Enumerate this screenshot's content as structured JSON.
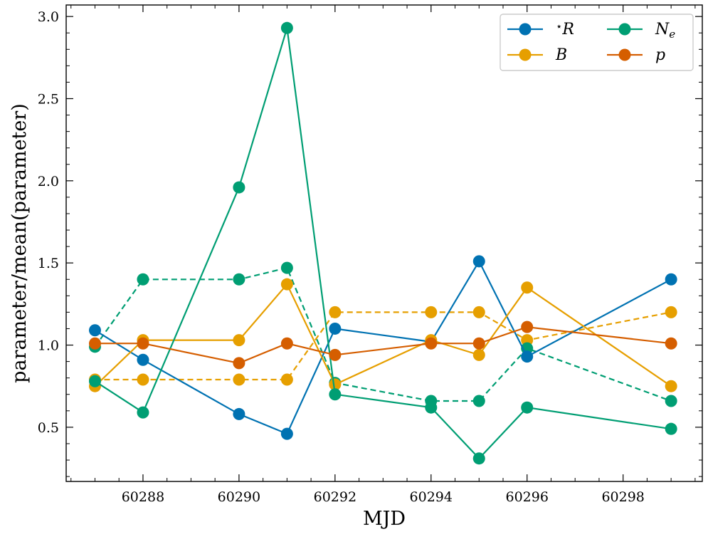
{
  "chart_data": {
    "type": "line",
    "title": "",
    "xlabel": "MJD",
    "ylabel": "parameter/mean(parameter)",
    "xlim": [
      60286.4,
      60299.65
    ],
    "ylim": [
      0.17,
      3.07
    ],
    "xticks": [
      60288,
      60290,
      60292,
      60294,
      60296,
      60298
    ],
    "xtick_labels": [
      "60288",
      "60290",
      "60292",
      "60294",
      "60296",
      "60298"
    ],
    "yticks": [
      0.5,
      1.0,
      1.5,
      2.0,
      2.5,
      3.0
    ],
    "ytick_labels": [
      "0.5",
      "1.0",
      "1.5",
      "2.0",
      "2.5",
      "3.0"
    ],
    "legend_position": "top-right",
    "series": [
      {
        "name": "R_star",
        "legend_prefix": "⋆",
        "legend_label": "R",
        "color": "#0072B2",
        "linestyle": "solid",
        "in_legend": true,
        "x": [
          60287,
          60288,
          60290,
          60291,
          60292,
          60294,
          60295,
          60296,
          60299
        ],
        "y": [
          1.09,
          0.91,
          0.58,
          0.46,
          1.1,
          1.02,
          1.51,
          0.93,
          1.4
        ]
      },
      {
        "name": "B",
        "legend_prefix": "",
        "legend_label": "B",
        "color": "#E69F00",
        "linestyle": "solid",
        "in_legend": true,
        "x": [
          60287,
          60288,
          60290,
          60291,
          60292,
          60294,
          60295,
          60296,
          60299
        ],
        "y": [
          0.75,
          1.03,
          1.03,
          1.37,
          0.76,
          1.03,
          0.94,
          1.35,
          0.75
        ]
      },
      {
        "name": "B_dashed",
        "color": "#E69F00",
        "linestyle": "dashed",
        "in_legend": false,
        "x": [
          60287,
          60288,
          60290,
          60291,
          60292,
          60294,
          60295,
          60296,
          60299
        ],
        "y": [
          0.79,
          0.79,
          0.79,
          0.79,
          1.2,
          1.2,
          1.2,
          1.03,
          1.2
        ]
      },
      {
        "name": "N_e",
        "legend_prefix": "",
        "legend_label": "N",
        "legend_sub": "e",
        "color": "#009E73",
        "linestyle": "solid",
        "in_legend": true,
        "x": [
          60287,
          60288,
          60290,
          60291,
          60292,
          60294,
          60295,
          60296,
          60299
        ],
        "y": [
          0.78,
          0.59,
          1.96,
          2.93,
          0.7,
          0.62,
          0.31,
          0.62,
          0.49
        ]
      },
      {
        "name": "N_e_dashed",
        "color": "#009E73",
        "linestyle": "dashed",
        "in_legend": false,
        "x": [
          60287,
          60288,
          60290,
          60291,
          60292,
          60294,
          60295,
          60296,
          60299
        ],
        "y": [
          0.99,
          1.4,
          1.4,
          1.47,
          0.77,
          0.66,
          0.66,
          0.98,
          0.66
        ]
      },
      {
        "name": "p",
        "legend_prefix": "",
        "legend_label": "p",
        "color": "#D55E00",
        "linestyle": "solid",
        "in_legend": true,
        "x": [
          60287,
          60288,
          60290,
          60291,
          60292,
          60294,
          60295,
          60296,
          60299
        ],
        "y": [
          1.01,
          1.01,
          0.89,
          1.01,
          0.94,
          1.01,
          1.01,
          1.11,
          1.01
        ]
      }
    ]
  }
}
